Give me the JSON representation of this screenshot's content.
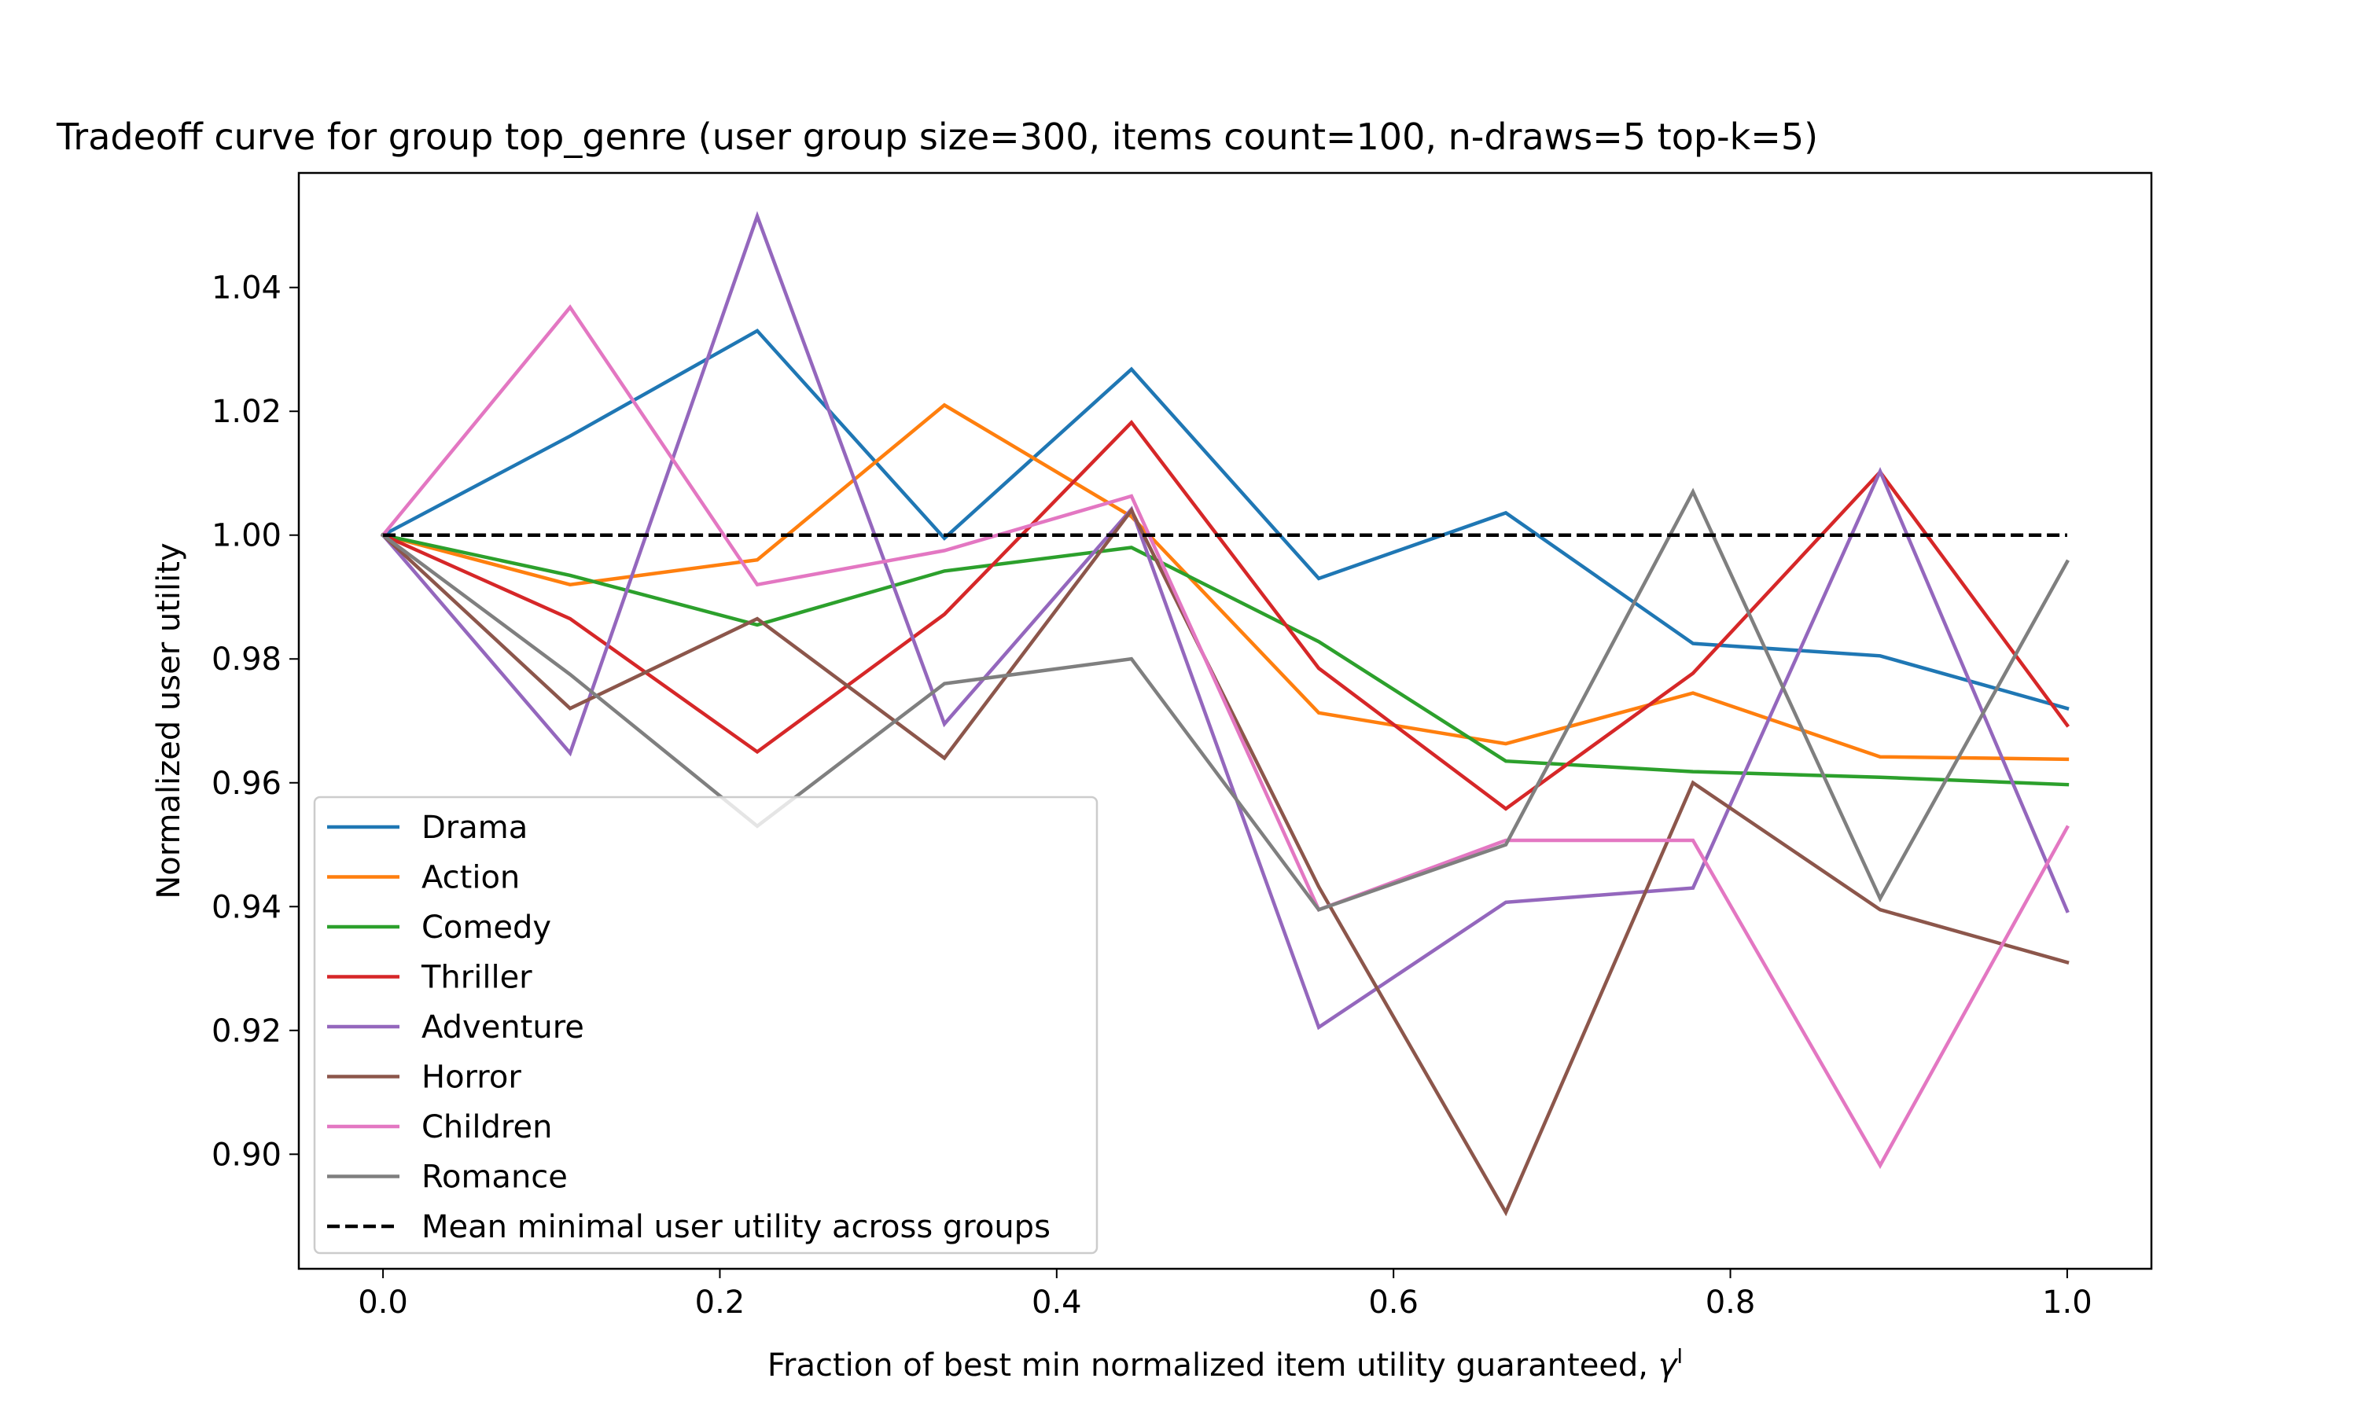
{
  "chart_data": {
    "type": "line",
    "title": "Tradeoff curve for group top_genre (user group size=300, items count=100, n-draws=5 top-k=5)",
    "xlabel": "Fraction of best min normalized item utility guaranteed, ",
    "xlabel_symbol": "γ",
    "xlabel_superscript": "I",
    "ylabel": "Normalized user utility",
    "xlim": [
      -0.05,
      1.05
    ],
    "ylim": [
      0.8815,
      1.0585
    ],
    "grid": false,
    "legend_position": "lower-left",
    "x": [
      0.0,
      0.1111,
      0.2222,
      0.3333,
      0.4444,
      0.5556,
      0.6667,
      0.7778,
      0.8889,
      1.0
    ],
    "x_ticks": [
      0.0,
      0.2,
      0.4,
      0.6,
      0.8,
      1.0
    ],
    "x_tick_labels": [
      "0.0",
      "0.2",
      "0.4",
      "0.6",
      "0.8",
      "1.0"
    ],
    "y_ticks": [
      0.9,
      0.92,
      0.94,
      0.96,
      0.98,
      1.0,
      1.02,
      1.04
    ],
    "y_tick_labels": [
      "0.90",
      "0.92",
      "0.94",
      "0.96",
      "0.98",
      "1.00",
      "1.02",
      "1.04"
    ],
    "series": [
      {
        "name": "Drama",
        "color": "#1f77b4",
        "values": [
          1.0,
          1.016,
          1.033,
          0.9995,
          1.0268,
          0.993,
          1.0036,
          0.9825,
          0.9805,
          0.972
        ]
      },
      {
        "name": "Action",
        "color": "#ff7f0e",
        "values": [
          1.0,
          0.992,
          0.996,
          1.021,
          1.003,
          0.9713,
          0.9663,
          0.9745,
          0.9642,
          0.9638
        ]
      },
      {
        "name": "Comedy",
        "color": "#2ca02c",
        "values": [
          1.0,
          0.9935,
          0.9855,
          0.9942,
          0.998,
          0.9828,
          0.9635,
          0.9618,
          0.9609,
          0.9597
        ]
      },
      {
        "name": "Thriller",
        "color": "#d62728",
        "values": [
          1.0,
          0.9865,
          0.965,
          0.9872,
          1.0182,
          0.9785,
          0.9558,
          0.9777,
          1.0102,
          0.9693
        ]
      },
      {
        "name": "Adventure",
        "color": "#9467bd",
        "values": [
          1.0,
          0.9648,
          1.0515,
          0.9695,
          1.0042,
          0.9205,
          0.9407,
          0.943,
          1.0103,
          0.9393
        ]
      },
      {
        "name": "Horror",
        "color": "#8c564b",
        "values": [
          1.0,
          0.972,
          0.9865,
          0.964,
          1.004,
          0.9432,
          0.8906,
          0.96,
          0.9395,
          0.931
        ]
      },
      {
        "name": "Children",
        "color": "#e377c2",
        "values": [
          1.0,
          1.0368,
          0.992,
          0.9975,
          1.0063,
          0.9395,
          0.9507,
          0.9507,
          0.8982,
          0.9528
        ]
      },
      {
        "name": "Romance",
        "color": "#7f7f7f",
        "values": [
          1.0,
          0.9775,
          0.953,
          0.976,
          0.98,
          0.9395,
          0.95,
          1.007,
          0.9413,
          0.9957
        ]
      }
    ],
    "reference_line": {
      "name": "Mean minimal user utility across groups",
      "y": 1.0,
      "color": "#000000",
      "style": "dashed"
    }
  }
}
